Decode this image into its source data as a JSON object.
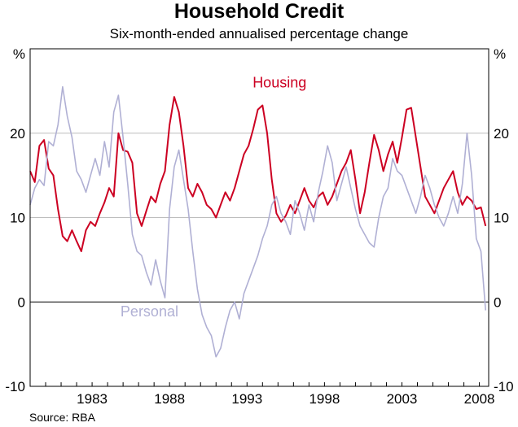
{
  "chart_data": {
    "type": "line",
    "title": "Household Credit",
    "subtitle": "Six-month-ended annualised percentage change",
    "ylabel_left": "%",
    "ylabel_right": "%",
    "source": "Source: RBA",
    "ylim": [
      -10,
      30
    ],
    "yticks": [
      -10,
      0,
      10,
      20
    ],
    "xlim": [
      1979.0,
      2008.6
    ],
    "xticks": [
      1983,
      1988,
      1993,
      1998,
      2003,
      2008
    ],
    "xtick_labels": [
      "1983",
      "1988",
      "1993",
      "1998",
      "2003",
      "2008"
    ],
    "grid": true,
    "series": [
      {
        "name": "Housing",
        "color": "#cc0022",
        "x": [
          1979.0,
          1979.3,
          1979.6,
          1979.9,
          1980.2,
          1980.5,
          1980.8,
          1981.1,
          1981.4,
          1981.7,
          1982.0,
          1982.3,
          1982.6,
          1982.9,
          1983.2,
          1983.5,
          1983.8,
          1984.1,
          1984.4,
          1984.7,
          1985.0,
          1985.3,
          1985.6,
          1985.9,
          1986.2,
          1986.5,
          1986.8,
          1987.1,
          1987.4,
          1987.7,
          1988.0,
          1988.3,
          1988.6,
          1988.9,
          1989.2,
          1989.5,
          1989.8,
          1990.1,
          1990.4,
          1990.7,
          1991.0,
          1991.3,
          1991.6,
          1991.9,
          1992.2,
          1992.5,
          1992.8,
          1993.1,
          1993.4,
          1993.7,
          1994.0,
          1994.3,
          1994.6,
          1994.9,
          1995.2,
          1995.5,
          1995.8,
          1996.1,
          1996.4,
          1996.7,
          1997.0,
          1997.3,
          1997.6,
          1997.9,
          1998.2,
          1998.5,
          1998.8,
          1999.1,
          1999.4,
          1999.7,
          2000.0,
          2000.3,
          2000.6,
          2000.9,
          2001.2,
          2001.5,
          2001.8,
          2002.1,
          2002.4,
          2002.7,
          2003.0,
          2003.3,
          2003.6,
          2003.9,
          2004.2,
          2004.5,
          2004.8,
          2005.1,
          2005.4,
          2005.7,
          2006.0,
          2006.3,
          2006.6,
          2006.9,
          2007.2,
          2007.5,
          2007.8,
          2008.1,
          2008.4
        ],
        "y": [
          15.5,
          14.2,
          18.5,
          19.2,
          15.8,
          15.0,
          11.0,
          7.8,
          7.2,
          8.5,
          7.2,
          6.0,
          8.5,
          9.5,
          9.0,
          10.5,
          11.8,
          13.5,
          12.5,
          20.0,
          18.0,
          17.8,
          16.5,
          10.5,
          9.0,
          10.8,
          12.5,
          11.8,
          14.0,
          15.5,
          21.0,
          24.3,
          22.5,
          18.5,
          13.5,
          12.5,
          14.0,
          13.0,
          11.5,
          11.0,
          10.0,
          11.5,
          13.0,
          12.0,
          13.5,
          15.5,
          17.5,
          18.5,
          20.5,
          22.8,
          23.3,
          20.0,
          14.5,
          10.5,
          9.5,
          10.2,
          11.5,
          10.5,
          12.0,
          13.5,
          12.0,
          11.2,
          12.5,
          13.0,
          11.5,
          12.5,
          14.0,
          15.5,
          16.5,
          18.0,
          14.5,
          10.5,
          13.0,
          16.5,
          19.8,
          18.0,
          15.5,
          17.5,
          19.0,
          16.5,
          19.5,
          22.8,
          23.0,
          19.5,
          16.0,
          12.5,
          11.5,
          10.5,
          12.0,
          13.5,
          14.5,
          15.5,
          13.0,
          11.5,
          12.5,
          12.0,
          11.0,
          11.2,
          9.0
        ]
      },
      {
        "name": "Personal",
        "color": "#b0b0d4",
        "x": [
          1979.0,
          1979.3,
          1979.6,
          1979.9,
          1980.2,
          1980.5,
          1980.8,
          1981.1,
          1981.4,
          1981.7,
          1982.0,
          1982.3,
          1982.6,
          1982.9,
          1983.2,
          1983.5,
          1983.8,
          1984.1,
          1984.4,
          1984.7,
          1985.0,
          1985.3,
          1985.6,
          1985.9,
          1986.2,
          1986.5,
          1986.8,
          1987.1,
          1987.4,
          1987.7,
          1988.0,
          1988.3,
          1988.6,
          1988.9,
          1989.2,
          1989.5,
          1989.8,
          1990.1,
          1990.4,
          1990.7,
          1991.0,
          1991.3,
          1991.6,
          1991.9,
          1992.2,
          1992.5,
          1992.8,
          1993.1,
          1993.4,
          1993.7,
          1994.0,
          1994.3,
          1994.6,
          1994.9,
          1995.2,
          1995.5,
          1995.8,
          1996.1,
          1996.4,
          1996.7,
          1997.0,
          1997.3,
          1997.6,
          1997.9,
          1998.2,
          1998.5,
          1998.8,
          1999.1,
          1999.4,
          1999.7,
          2000.0,
          2000.3,
          2000.6,
          2000.9,
          2001.2,
          2001.5,
          2001.8,
          2002.1,
          2002.4,
          2002.7,
          2003.0,
          2003.3,
          2003.6,
          2003.9,
          2004.2,
          2004.5,
          2004.8,
          2005.1,
          2005.4,
          2005.7,
          2006.0,
          2006.3,
          2006.6,
          2006.9,
          2007.2,
          2007.5,
          2007.8,
          2008.1,
          2008.4
        ],
        "y": [
          11.5,
          13.5,
          14.5,
          13.8,
          19.0,
          18.5,
          21.0,
          25.5,
          22.0,
          19.5,
          15.5,
          14.5,
          13.0,
          15.0,
          17.0,
          15.0,
          19.0,
          16.0,
          22.5,
          24.5,
          19.5,
          14.0,
          8.0,
          6.0,
          5.5,
          3.5,
          2.0,
          5.0,
          2.5,
          0.5,
          11.0,
          16.0,
          18.0,
          14.5,
          11.0,
          6.0,
          1.5,
          -1.5,
          -3.0,
          -4.0,
          -6.5,
          -5.5,
          -3.0,
          -1.0,
          0.0,
          -2.0,
          1.0,
          2.5,
          4.0,
          5.5,
          7.5,
          9.0,
          11.5,
          12.5,
          10.5,
          9.5,
          8.0,
          12.0,
          10.5,
          8.5,
          11.5,
          9.5,
          13.0,
          15.5,
          18.5,
          16.5,
          12.0,
          14.0,
          16.0,
          13.5,
          11.0,
          9.0,
          8.0,
          7.0,
          6.5,
          10.0,
          12.5,
          13.5,
          17.0,
          15.5,
          15.0,
          13.5,
          12.0,
          10.5,
          12.5,
          15.0,
          13.5,
          11.5,
          10.0,
          9.0,
          10.5,
          12.5,
          10.5,
          14.0,
          20.0,
          15.0,
          7.5,
          6.0,
          -1.0
        ]
      }
    ],
    "annotations": [
      {
        "text": "Housing",
        "x": 1995.1,
        "y": 25.4,
        "series": "Housing"
      },
      {
        "text": "Personal",
        "x": 1986.7,
        "y": -1.7,
        "series": "Personal"
      }
    ]
  }
}
